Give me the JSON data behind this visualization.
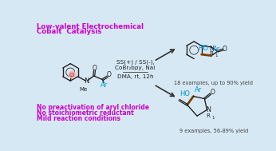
{
  "bg_color": "#d6e8f4",
  "title_line1": "Low-valent Electrochemical",
  "title_line2": "Cobalt  Catalysis",
  "title_color": "#cc00cc",
  "conditions_line1": "SS(+) / SS(-),",
  "conditions_line2": "CoBr₂bpy, NaI",
  "conditions_line3": "DMA, rt, 12h",
  "bottom_line1": "No preactivation of aryl chloride",
  "bottom_line2": "No stoichiometric reductant",
  "bottom_line3": "Mild reaction conditions",
  "bottom_color": "#cc00cc",
  "yield_line1": "18 examples, up to 90% yield",
  "yield_line2": "9 examples, 56-89% yield",
  "yield_color": "#444444",
  "ar_color": "#0099dd",
  "ho_color": "#0099dd",
  "bond_dark": "#7B3F00",
  "structure_color": "#222222",
  "cl_circle_color": "#f5b8b8",
  "n_color": "#222222"
}
